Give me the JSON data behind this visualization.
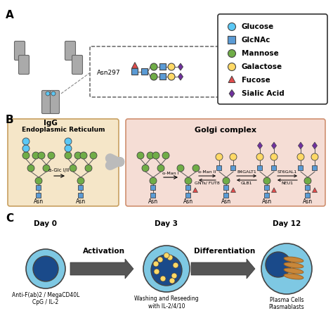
{
  "panel_labels": [
    "A",
    "B",
    "C"
  ],
  "legend_items": [
    {
      "label": "Glucose",
      "shape": "circle",
      "color": "#5bc8f5"
    },
    {
      "label": "GlcNAc",
      "shape": "square",
      "color": "#5b9bd5"
    },
    {
      "label": "Mannose",
      "shape": "circle",
      "color": "#70ad47"
    },
    {
      "label": "Galactose",
      "shape": "circle",
      "color": "#ffd966"
    },
    {
      "label": "Fucose",
      "shape": "triangle",
      "color": "#e04b4b"
    },
    {
      "label": "Sialic Acid",
      "shape": "diamond",
      "color": "#7030a0"
    }
  ],
  "igg_label": "IgG",
  "asn297_label": "Asn297",
  "er_label": "Endoplasmic Reticulum",
  "golgi_label": "Golgi complex",
  "er_bg": "#f5e6c8",
  "golgi_bg": "#f5ddd5",
  "day_labels": [
    "Day 0",
    "Day 3",
    "Day 12"
  ],
  "arrow_labels": [
    "Activation",
    "Differentiation"
  ],
  "cell_labels_0": [
    "Anti-F(ab)2 / MegaCD40L",
    "CpG / IL-2"
  ],
  "cell_labels_1": [
    "Washing and Reseeding",
    "with IL-2/4/10"
  ],
  "cell_labels_2": [
    "Plasma Cells",
    "Plasmablasts"
  ],
  "bg_color": "#ffffff",
  "line_color": "#555555",
  "glcnac_color": "#5b9bd5",
  "mannose_color": "#70ad47",
  "glucose_color": "#5bc8f5",
  "galactose_color": "#ffd966",
  "fucose_color": "#e04b4b",
  "sialic_color": "#7030a0",
  "cell_outer_color": "#7ec8e3",
  "cell_nucleus_color": "#1a4a8a",
  "er_strand_color": "#c8873a",
  "arrow_fill_color": "#555555"
}
